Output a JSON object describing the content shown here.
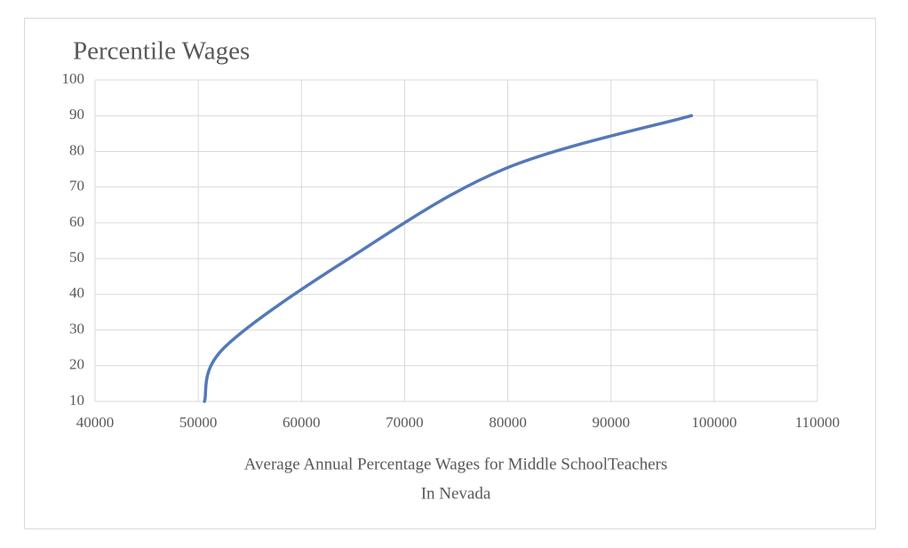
{
  "chart_data": {
    "type": "scatter",
    "title": "Percentile Wages",
    "x_label": [
      "Average Annual Percentage Wages for Middle SchoolTeachers",
      "In Nevada"
    ],
    "series": [
      {
        "color": "#5479b8",
        "x": [
          50600,
          52500,
          64600,
          79600,
          97800
        ],
        "values": [
          10,
          25,
          50,
          75,
          90
        ]
      }
    ],
    "xlim": [
      40000,
      110000
    ],
    "xticks": [
      40000,
      50000,
      60000,
      70000,
      80000,
      90000,
      100000,
      110000
    ],
    "ylim": [
      10,
      100
    ],
    "yticks": [
      10,
      20,
      30,
      40,
      50,
      60,
      70,
      80,
      90,
      100
    ],
    "grid": true,
    "smooth": true
  }
}
